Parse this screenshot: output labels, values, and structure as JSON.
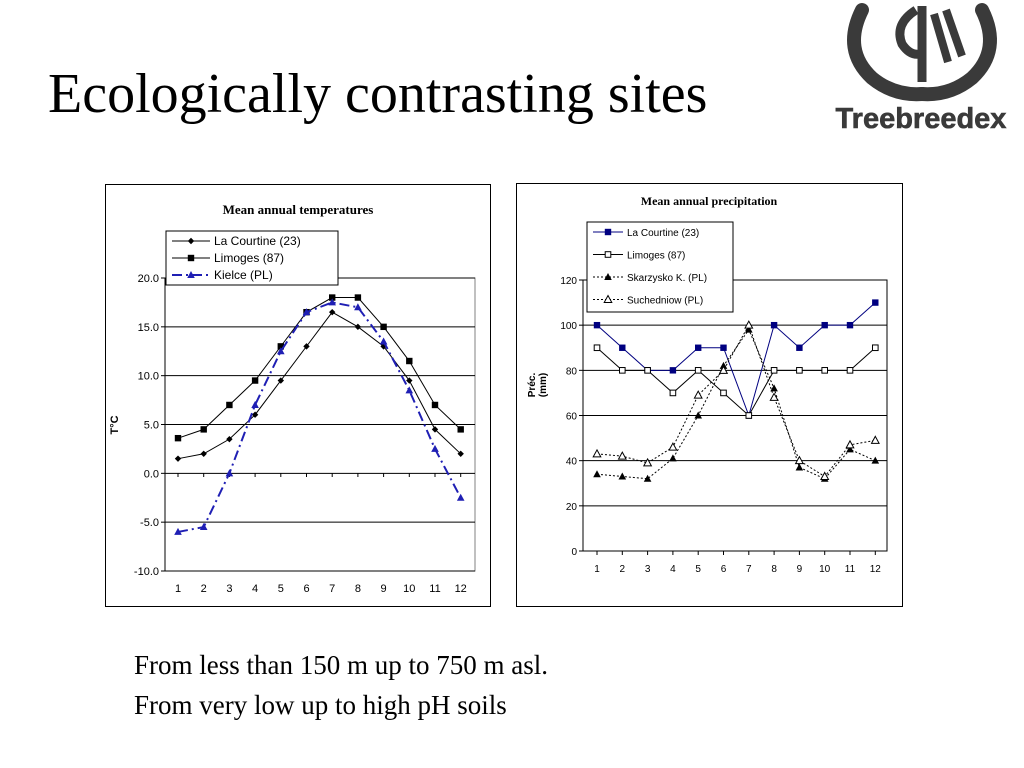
{
  "slide": {
    "title": "Ecologically contrasting sites",
    "captions": [
      "From less than 150 m up to 750 m asl.",
      "From very low up to high pH soils"
    ],
    "logo_text": "Treebreedex"
  },
  "chart_data": [
    {
      "type": "line",
      "title": "Mean annual temperatures",
      "xlabel": "",
      "ylabel": "T°C",
      "categories": [
        "1",
        "2",
        "3",
        "4",
        "5",
        "6",
        "7",
        "8",
        "9",
        "10",
        "11",
        "12"
      ],
      "ylim": [
        -10,
        20
      ],
      "yticks": [
        "-10.0",
        "-5.0",
        "0.0",
        "5.0",
        "10.0",
        "15.0",
        "20.0"
      ],
      "grid": "horizontal",
      "legend_position": "top-left",
      "series": [
        {
          "name": "La Courtine (23)",
          "values": [
            1.5,
            2,
            3.5,
            6,
            9.5,
            13,
            16.5,
            15,
            13,
            9.5,
            4.5,
            2
          ],
          "color": "#000000",
          "marker": "diamond",
          "line": "solid"
        },
        {
          "name": "Limoges (87)",
          "values": [
            3.6,
            4.5,
            7,
            9.5,
            13,
            16.5,
            18,
            18,
            15,
            11.5,
            7,
            4.5
          ],
          "color": "#000000",
          "marker": "square",
          "line": "solid"
        },
        {
          "name": "Kielce (PL)",
          "values": [
            -6,
            -5.5,
            0,
            7,
            12.5,
            16.5,
            17.5,
            17,
            13.5,
            8.5,
            2.5,
            -2.5
          ],
          "color": "#1f1fb4",
          "marker": "triangle",
          "line": "dashdot"
        }
      ]
    },
    {
      "type": "line",
      "title": "Mean annual precipitation",
      "xlabel": "",
      "ylabel": "Préc. (mm)",
      "categories": [
        "1",
        "2",
        "3",
        "4",
        "5",
        "6",
        "7",
        "8",
        "9",
        "10",
        "11",
        "12"
      ],
      "ylim": [
        0,
        120
      ],
      "yticks": [
        "0",
        "20",
        "40",
        "60",
        "80",
        "100",
        "120"
      ],
      "grid": "horizontal",
      "legend_position": "top-left",
      "series": [
        {
          "name": "La Courtine (23)",
          "values": [
            100,
            90,
            80,
            80,
            90,
            90,
            60,
            100,
            90,
            100,
            100,
            110
          ],
          "color": "#000080",
          "marker": "square-filled",
          "line": "solid"
        },
        {
          "name": "Limoges (87)",
          "values": [
            90,
            80,
            80,
            70,
            80,
            70,
            60,
            80,
            80,
            80,
            80,
            90
          ],
          "color": "#000000",
          "marker": "square-open",
          "line": "solid"
        },
        {
          "name": "Skarzysko K. (PL)",
          "values": [
            34,
            33,
            32,
            41,
            60,
            82,
            98,
            72,
            37,
            32,
            45,
            40
          ],
          "color": "#000000",
          "marker": "triangle-filled",
          "line": "dotted"
        },
        {
          "name": "Suchedniow (PL)",
          "values": [
            43,
            42,
            39,
            46,
            69,
            80,
            100,
            68,
            40,
            33,
            47,
            49
          ],
          "color": "#000000",
          "marker": "triangle-open",
          "line": "dotted"
        }
      ]
    }
  ]
}
